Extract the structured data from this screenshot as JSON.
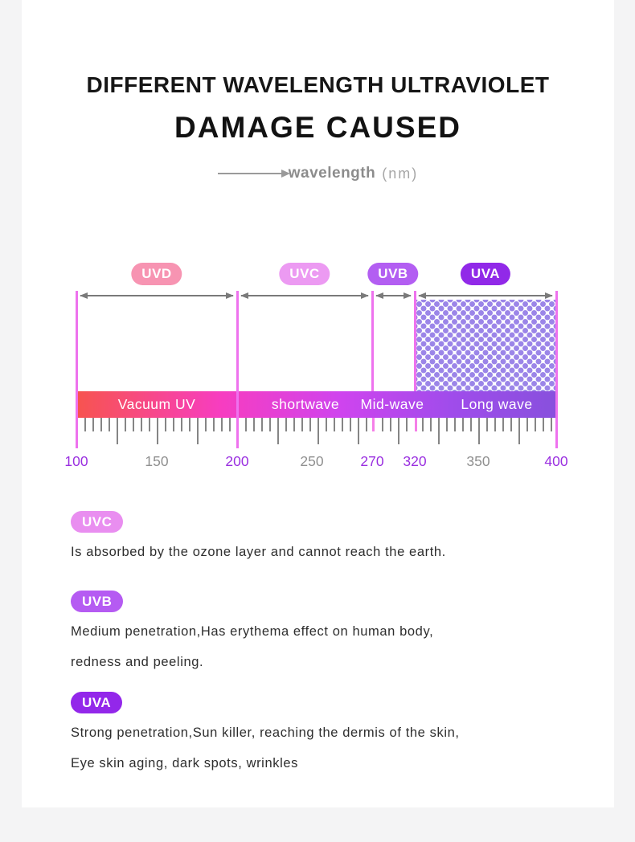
{
  "header": {
    "title_line1": "DIFFERENT WAVELENGTH ULTRAVIOLET",
    "title_line2": "DAMAGE CAUSED",
    "axis_label": "wavelength",
    "axis_unit": "(nm)"
  },
  "diagram": {
    "badges": [
      {
        "label": "UVD",
        "color": "#f794b2"
      },
      {
        "label": "UVC",
        "color": "#ec9af2"
      },
      {
        "label": "UVB",
        "color": "#b35ef2"
      },
      {
        "label": "UVA",
        "color": "#9129e8"
      }
    ],
    "bar_segments": [
      {
        "label": "Vacuum UV"
      },
      {
        "label": "shortwave"
      },
      {
        "label": "Mid-wave"
      },
      {
        "label": "Long wave"
      }
    ],
    "ruler_labels": [
      {
        "text": "100",
        "accent": true
      },
      {
        "text": "150",
        "accent": false
      },
      {
        "text": "200",
        "accent": true
      },
      {
        "text": "250",
        "accent": false
      },
      {
        "text": "270",
        "accent": true
      },
      {
        "text": "320",
        "accent": true
      },
      {
        "text": "350",
        "accent": false
      },
      {
        "text": "400",
        "accent": true
      }
    ],
    "colors": {
      "accent_number": "#9a2fe0",
      "gray_number": "#909090",
      "guide_line": "#ee72ee",
      "range_arrow": "#7a7a7a",
      "dot_pattern": "#9b85e8",
      "bar_gradient": [
        "#f7544f",
        "#f73dc0",
        "#cf44ee",
        "#a04ceb",
        "#8850dd"
      ]
    }
  },
  "chart_data": {
    "type": "other",
    "title": "DIFFERENT WAVELENGTH ULTRAVIOLET DAMAGE CAUSED",
    "xlabel": "wavelength (nm)",
    "axis_ticks_nm": [
      100,
      150,
      200,
      250,
      270,
      320,
      350,
      400
    ],
    "bands": [
      {
        "name": "UVD",
        "range_nm": [
          100,
          200
        ],
        "bar_label": "Vacuum UV"
      },
      {
        "name": "UVC",
        "range_nm": [
          200,
          270
        ],
        "bar_label": "shortwave"
      },
      {
        "name": "UVB",
        "range_nm": [
          270,
          320
        ],
        "bar_label": "Mid-wave"
      },
      {
        "name": "UVA",
        "range_nm": [
          320,
          400
        ],
        "bar_label": "Long wave",
        "fill": "dot-pattern"
      }
    ]
  },
  "sections": [
    {
      "badge": "UVC",
      "badge_color": "#e98ef0",
      "line1": "Is absorbed by the ozone layer and cannot reach the earth.",
      "line2": ""
    },
    {
      "badge": "UVB",
      "badge_color": "#b55bf2",
      "line1": "Medium penetration,Has erythema effect on human body,",
      "line2": "redness and peeling."
    },
    {
      "badge": "UVA",
      "badge_color": "#9327ea",
      "line1": "Strong penetration,Sun killer, reaching the dermis of the skin,",
      "line2": "Eye skin aging, dark spots, wrinkles"
    }
  ]
}
